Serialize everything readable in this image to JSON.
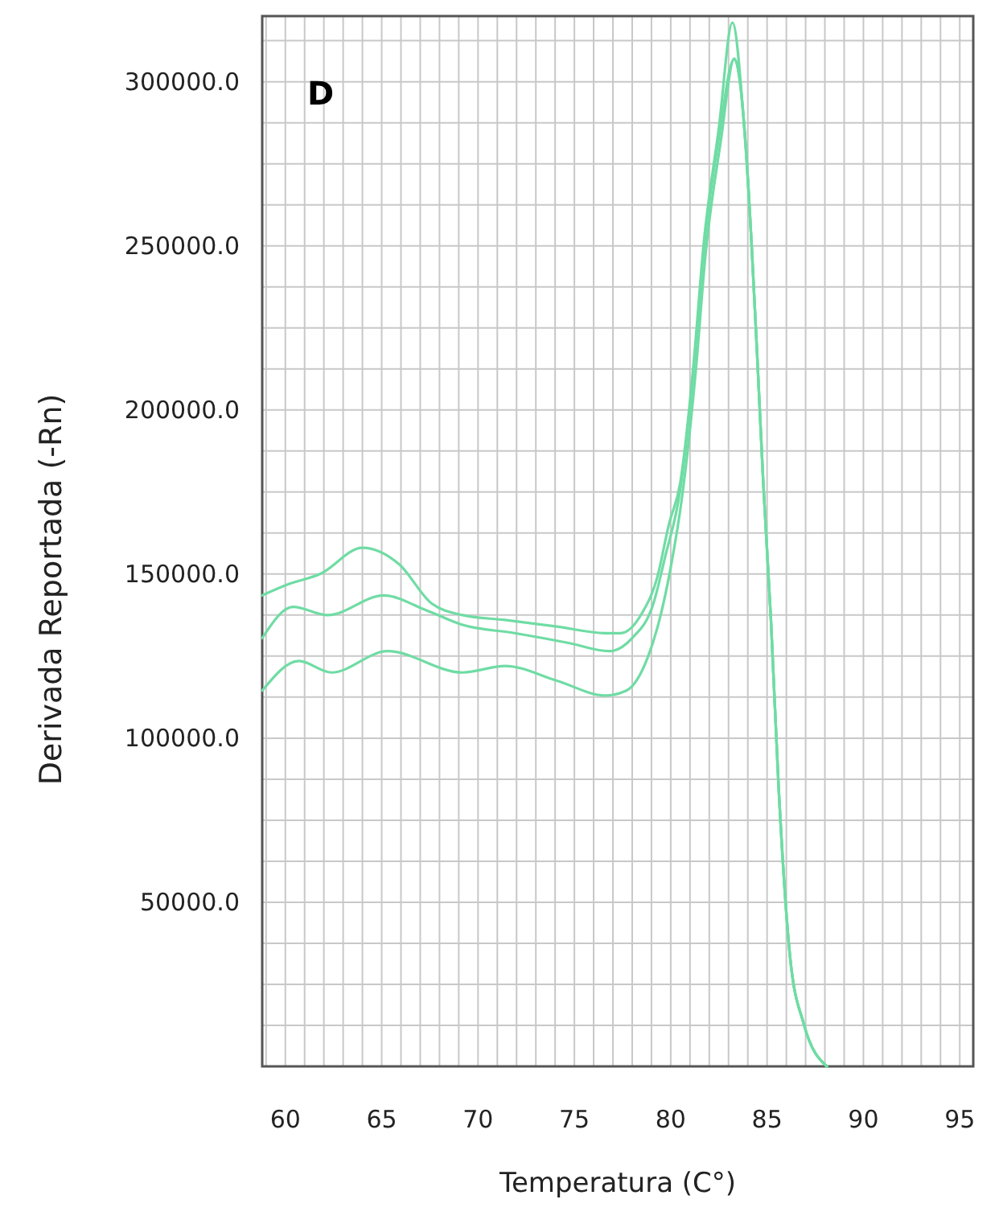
{
  "chart_data": {
    "type": "line",
    "xlabel": "Temperatura (C°)",
    "ylabel": "Derivada Reportada (-Rn)",
    "annotations": [
      "D"
    ],
    "xlim": [
      58.8,
      95.7
    ],
    "ylim": [
      0,
      320000
    ],
    "grid": true,
    "line_style": "solid",
    "xticks": [
      {
        "value": 59,
        "label": null
      },
      60,
      {
        "value": 61,
        "label": null
      },
      {
        "value": 62,
        "label": null
      },
      {
        "value": 63,
        "label": null
      },
      {
        "value": 64,
        "label": null
      },
      65,
      {
        "value": 66,
        "label": null
      },
      {
        "value": 67,
        "label": null
      },
      {
        "value": 68,
        "label": null
      },
      {
        "value": 69,
        "label": null
      },
      70,
      {
        "value": 71,
        "label": null
      },
      {
        "value": 72,
        "label": null
      },
      {
        "value": 73,
        "label": null
      },
      {
        "value": 74,
        "label": null
      },
      75,
      {
        "value": 76,
        "label": null
      },
      {
        "value": 77,
        "label": null
      },
      {
        "value": 78,
        "label": null
      },
      {
        "value": 79,
        "label": null
      },
      80,
      {
        "value": 81,
        "label": null
      },
      {
        "value": 82,
        "label": null
      },
      {
        "value": 83,
        "label": null
      },
      {
        "value": 84,
        "label": null
      },
      85,
      {
        "value": 86,
        "label": null
      },
      {
        "value": 87,
        "label": null
      },
      {
        "value": 88,
        "label": null
      },
      {
        "value": 89,
        "label": null
      },
      90,
      {
        "value": 91,
        "label": null
      },
      {
        "value": 92,
        "label": null
      },
      {
        "value": 93,
        "label": null
      },
      {
        "value": 94,
        "label": null
      },
      95
    ],
    "yticks": [
      {
        "value": 12500,
        "label": null
      },
      {
        "value": 25000,
        "label": null
      },
      {
        "value": 37500,
        "label": null
      },
      {
        "value": 50000,
        "label": "50000.0"
      },
      {
        "value": 62500,
        "label": null
      },
      {
        "value": 75000,
        "label": null
      },
      {
        "value": 87500,
        "label": null
      },
      {
        "value": 100000,
        "label": "100000.0"
      },
      {
        "value": 112500,
        "label": null
      },
      {
        "value": 125000,
        "label": null
      },
      {
        "value": 137500,
        "label": null
      },
      {
        "value": 150000,
        "label": "150000.0"
      },
      {
        "value": 162500,
        "label": null
      },
      {
        "value": 175000,
        "label": null
      },
      {
        "value": 187500,
        "label": null
      },
      {
        "value": 200000,
        "label": "200000.0"
      },
      {
        "value": 212500,
        "label": null
      },
      {
        "value": 225000,
        "label": null
      },
      {
        "value": 237500,
        "label": null
      },
      {
        "value": 250000,
        "label": "250000.0"
      },
      {
        "value": 262500,
        "label": null
      },
      {
        "value": 275000,
        "label": null
      },
      {
        "value": 287500,
        "label": null
      },
      {
        "value": 300000,
        "label": "300000.0"
      },
      {
        "value": 312500,
        "label": null
      }
    ],
    "series": [
      {
        "color": "#6fdca4",
        "x": [
          58.8,
          60.2,
          61.8,
          64.0,
          65.9,
          67.6,
          69.2,
          71.4,
          74.1,
          76.6,
          77.4,
          78.5,
          79.3,
          79.9,
          80.5,
          81.2,
          81.7,
          82.5,
          83.2,
          83.8,
          84.2,
          84.5,
          84.8,
          85.2,
          85.6,
          86.2,
          86.9,
          88.1
        ],
        "values": [
          143500,
          147000,
          150000,
          158000,
          153000,
          141000,
          137500,
          136000,
          134000,
          132000,
          132000,
          138000,
          149000,
          165000,
          178000,
          215000,
          250000,
          286000,
          318000,
          287000,
          250000,
          215000,
          178000,
          136000,
          85000,
          33000,
          13000,
          0
        ]
      },
      {
        "color": "#6fdca4",
        "x": [
          58.8,
          60.4,
          62.2,
          65.1,
          67.3,
          69.2,
          71.9,
          74.7,
          76.8,
          78.0,
          79.1,
          79.7,
          80.5,
          81.2,
          81.7,
          82.5,
          83.3,
          83.9,
          84.2,
          84.5,
          84.8,
          85.2,
          85.6,
          86.2,
          86.9,
          88.1
        ],
        "values": [
          130500,
          140000,
          137500,
          143500,
          139000,
          134500,
          132000,
          129000,
          126500,
          130500,
          141000,
          155000,
          176000,
          213000,
          248000,
          283000,
          307000,
          280000,
          250000,
          215000,
          178000,
          136000,
          85000,
          33000,
          13000,
          0
        ]
      },
      {
        "color": "#6fdca4",
        "x": [
          58.8,
          60.7,
          62.4,
          65.3,
          69.2,
          71.4,
          74.1,
          76.6,
          77.7,
          78.8,
          79.3,
          80.0,
          80.6,
          81.3,
          81.8,
          82.6,
          83.3,
          83.9,
          84.2,
          84.5,
          84.8,
          85.2,
          85.6,
          86.2,
          86.9,
          88.1
        ],
        "values": [
          114500,
          123500,
          120000,
          126500,
          120000,
          122000,
          117500,
          113000,
          114500,
          124500,
          133500,
          152000,
          174000,
          212000,
          247000,
          282000,
          307000,
          280000,
          250000,
          215000,
          178000,
          136000,
          85000,
          33000,
          13000,
          0
        ]
      }
    ]
  }
}
